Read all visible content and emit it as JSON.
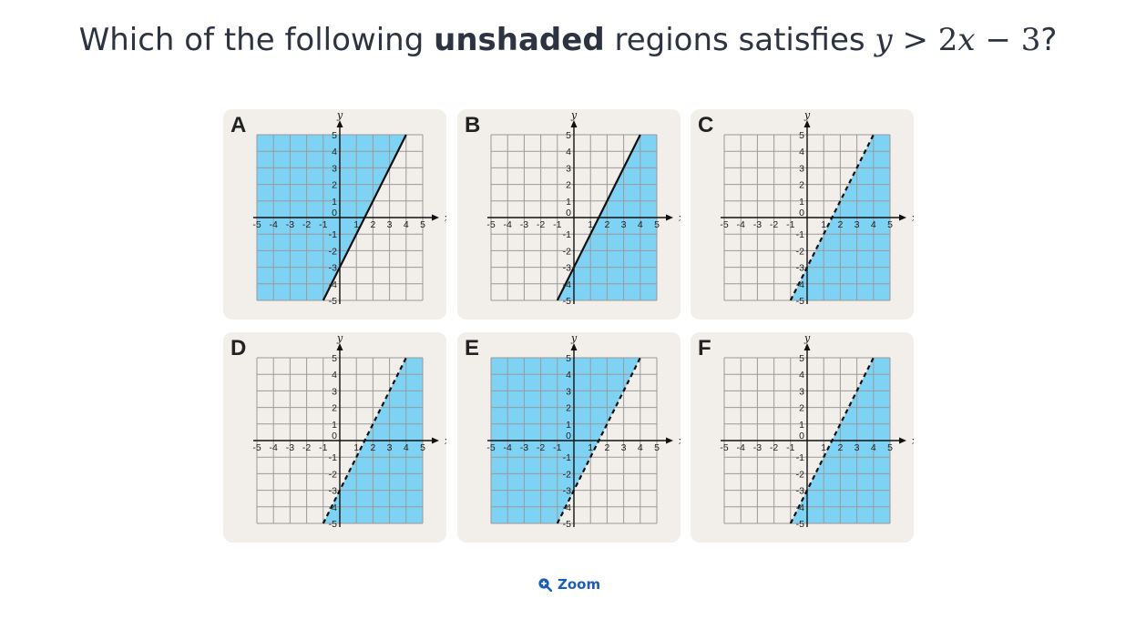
{
  "question": {
    "prefix": "Which of the following ",
    "bold": "unshaded",
    "middle": " regions satisfies ",
    "math_y": "y",
    "math_gt": " > ",
    "math_2": "2",
    "math_x": "x",
    "math_minus": " − ",
    "math_3": "3",
    "suffix": "?"
  },
  "options": [
    {
      "letter": "A",
      "line": "solid",
      "shade": "left"
    },
    {
      "letter": "B",
      "line": "solid",
      "shade": "right"
    },
    {
      "letter": "C",
      "line": "dashed",
      "shade": "right"
    },
    {
      "letter": "D",
      "line": "dashed",
      "shade": "right"
    },
    {
      "letter": "E",
      "line": "dashed",
      "shade": "left"
    },
    {
      "letter": "F",
      "line": "dashed",
      "shade": "right"
    }
  ],
  "axis": {
    "x_label": "x",
    "y_label": "y",
    "x_ticks": [
      "-5",
      "-4",
      "-3",
      "-2",
      "-1",
      "1",
      "2",
      "3",
      "4",
      "5"
    ],
    "y_ticks": [
      "5",
      "4",
      "3",
      "2",
      "1",
      "-1",
      "-2",
      "-3",
      "-4",
      "-5"
    ],
    "origin": "0"
  },
  "zoom_label": "Zoom",
  "colors": {
    "shade": "#7ed3f5",
    "grid": "#9a9a9a",
    "card": "#f2efea",
    "link": "#1a5fb4"
  }
}
